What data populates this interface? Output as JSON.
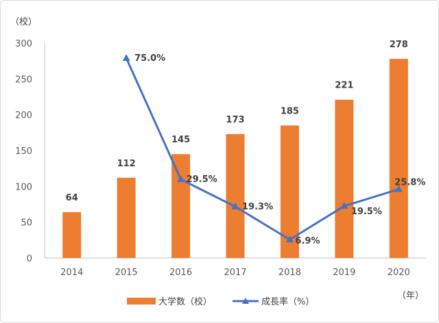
{
  "chart_data": {
    "type": "bar",
    "categories": [
      "2014",
      "2015",
      "2016",
      "2017",
      "2018",
      "2019",
      "2020"
    ],
    "series": [
      {
        "name": "大学数（校）",
        "type": "bar",
        "axis": "left",
        "color": "#ED7D31",
        "values": [
          64,
          112,
          145,
          173,
          185,
          221,
          278
        ],
        "labels": [
          "64",
          "112",
          "145",
          "173",
          "185",
          "221",
          "278"
        ]
      },
      {
        "name": "成長率（%）",
        "type": "line",
        "marker": "triangle",
        "color": "#4472C4",
        "values": [
          null,
          75.0,
          29.5,
          19.3,
          6.9,
          19.5,
          25.8
        ],
        "labels": [
          "",
          "75.0%",
          "29.5%",
          "19.3%",
          "6.9%",
          "19.5%",
          "25.8%"
        ]
      }
    ],
    "ylim": [
      0,
      300
    ],
    "yticks": [
      "0",
      "50",
      "100",
      "150",
      "200",
      "250",
      "300"
    ],
    "ylabel": "（校）",
    "xlabel": "（年）",
    "line_scale_note_hidden": true,
    "grid": false,
    "legend": "bottom"
  }
}
